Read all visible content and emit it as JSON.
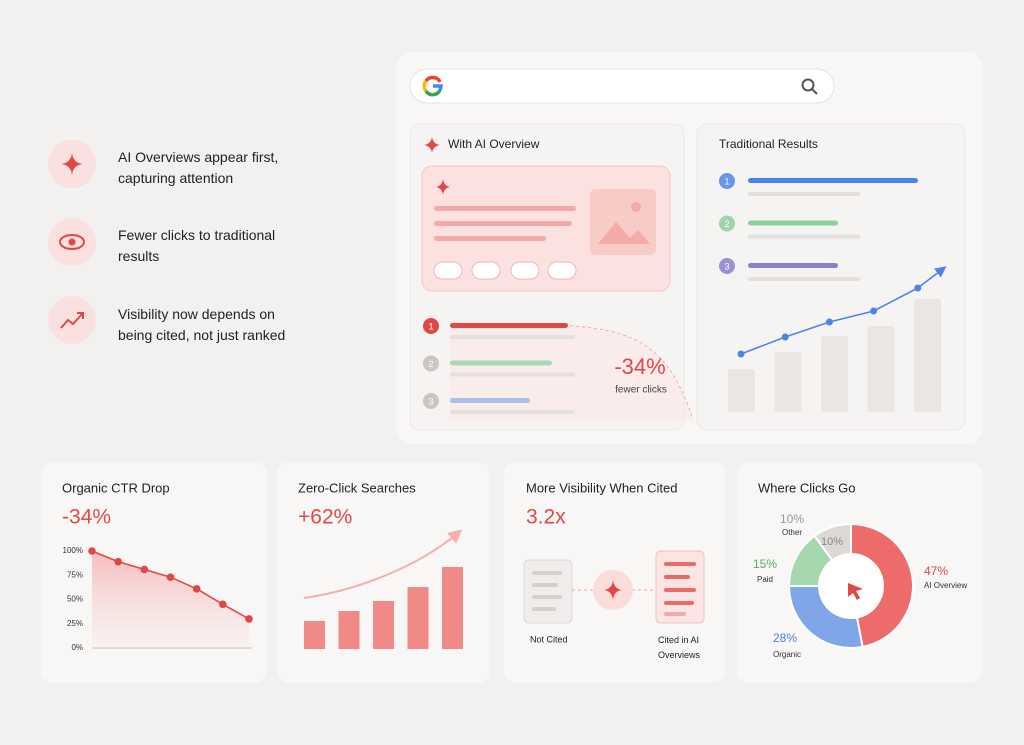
{
  "features": [
    {
      "text": "AI Overviews appear first, capturing attention"
    },
    {
      "text": "Fewer clicks to traditional results"
    },
    {
      "text": "Visibility now depends on being cited, not just ranked"
    }
  ],
  "ai_panel": {
    "title": "With AI Overview",
    "ranks": [
      1,
      2,
      3
    ],
    "stat": "-34%",
    "stat_label": "fewer clicks"
  },
  "traditional_panel": {
    "title": "Traditional Results",
    "ranks": [
      1,
      2,
      3
    ],
    "trend": {
      "bars": [
        43,
        60,
        76,
        86,
        113
      ],
      "line": [
        58,
        75,
        90,
        101,
        124
      ]
    }
  },
  "cards": {
    "ctr": {
      "title": "Organic CTR Drop",
      "headline": "-34%",
      "type": "line",
      "ylim": [
        0,
        100
      ],
      "yticks": [
        {
          "value": 0,
          "label": "0%"
        },
        {
          "value": 25,
          "label": "25%"
        },
        {
          "value": 50,
          "label": "50%"
        },
        {
          "value": 75,
          "label": "75%"
        },
        {
          "value": 100,
          "label": "100%"
        }
      ],
      "values": [
        100,
        89,
        81,
        73,
        61,
        45,
        30
      ],
      "color": "#e04848"
    },
    "zero_click": {
      "title": "Zero-Click Searches",
      "headline": "+62%",
      "type": "bar",
      "values": [
        28,
        38,
        48,
        62,
        82
      ],
      "color": "#f08a87"
    },
    "visibility": {
      "title": "More Visibility When Cited",
      "headline": "3.2x",
      "left_label": "Not Cited",
      "right_label": "Cited in AI Overviews"
    },
    "clicks": {
      "title": "Where Clicks Go",
      "type": "pie",
      "names": [
        "AI Overview",
        "Organic",
        "Paid",
        "Other"
      ],
      "values": [
        47,
        28,
        15,
        10
      ],
      "value_labels": [
        "47%",
        "28%",
        "15%",
        "10%"
      ],
      "colors": [
        "#ee6b6b",
        "#80a6ea",
        "#a6d8b0",
        "#dcd8d6"
      ],
      "label_colors": [
        "#e04848",
        "#4a7fd6",
        "#4caf63",
        "#999999"
      ]
    }
  }
}
